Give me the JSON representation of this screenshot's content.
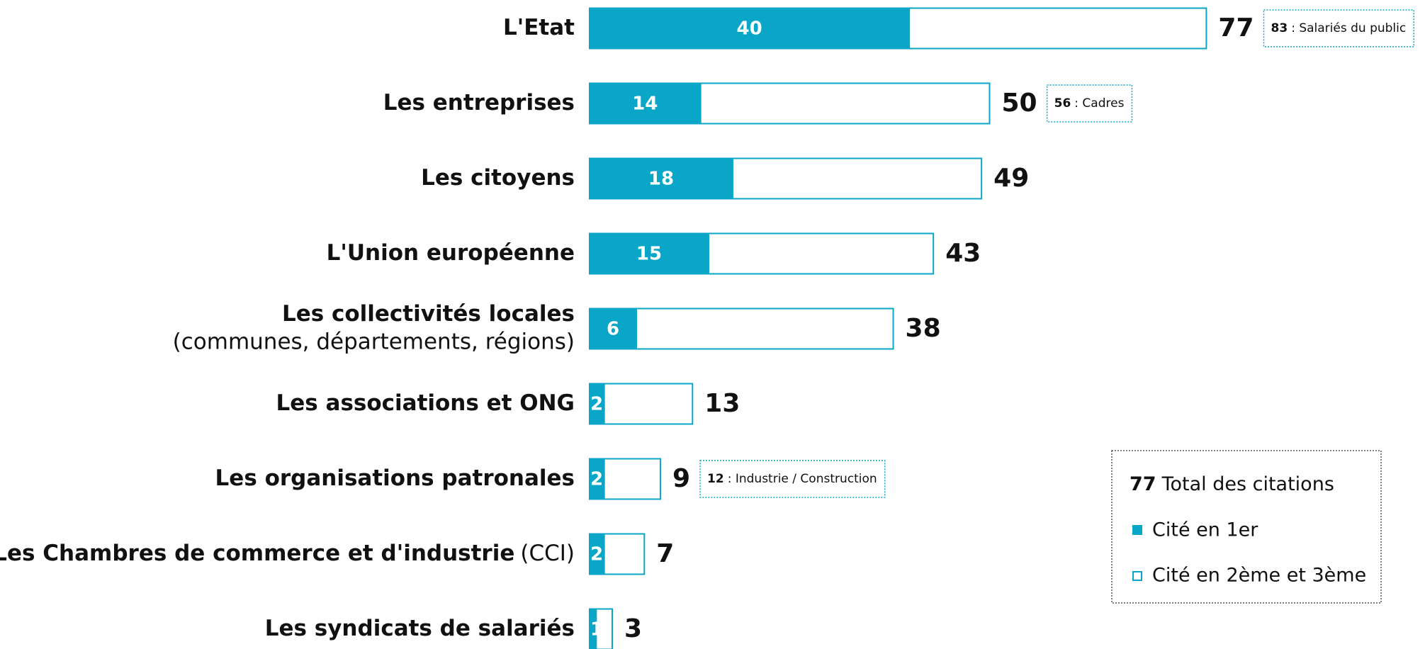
{
  "chart_data": {
    "type": "bar",
    "categories": [
      "L'Etat",
      "Les entreprises",
      "Les citoyens",
      "L'Union européenne",
      "Les collectivités locales",
      "Les associations et ONG",
      "Les organisations patronales",
      "Les Chambres de commerce et d'industrie",
      "Les syndicats de salariés"
    ],
    "category_notes": [
      null,
      null,
      null,
      null,
      "(communes, départements, régions)",
      null,
      null,
      "(CCI)",
      null
    ],
    "series": [
      {
        "name": "Cité en 1er",
        "color": "#0aa6c8",
        "values": [
          40,
          14,
          18,
          15,
          6,
          2,
          2,
          2,
          1
        ]
      }
    ],
    "totals": {
      "name": "Total des citations",
      "color": "#0aa6c8",
      "values": [
        77,
        50,
        49,
        43,
        38,
        13,
        9,
        7,
        3
      ]
    },
    "notes": [
      {
        "value": 83,
        "text": ": Salariés du public"
      },
      {
        "value": 56,
        "text": ": Cadres"
      },
      null,
      null,
      null,
      null,
      {
        "value": 12,
        "text": ": Industrie / Construction"
      },
      null,
      null
    ],
    "legend": {
      "total_example": 77,
      "total_label": "Total des citations",
      "rest_label": "Cité en 2ème et 3ème"
    }
  }
}
